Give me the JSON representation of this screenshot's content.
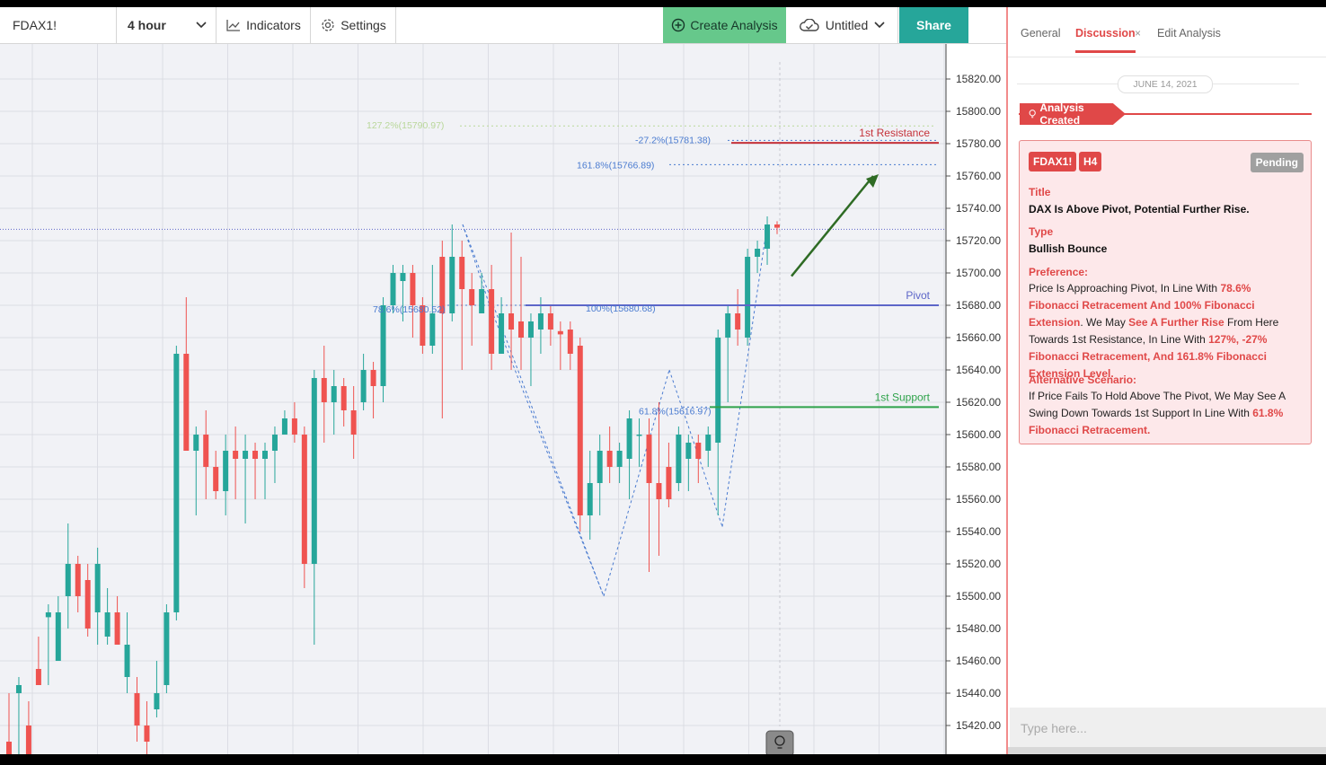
{
  "toolbar": {
    "symbol": "FDAX1!",
    "interval": "4 hour",
    "indicators_label": "Indicators",
    "settings_label": "Settings",
    "create_label": "Create Analysis",
    "untitled_label": "Untitled",
    "share_label": "Share"
  },
  "chart_data": {
    "type": "candlestick",
    "y_ticks": [
      "15820.00",
      "15800.00",
      "15780.00",
      "15760.00",
      "15740.00",
      "15720.00",
      "15700.00",
      "15680.00",
      "15660.00",
      "15640.00",
      "15620.00",
      "15600.00",
      "15580.00",
      "15560.00",
      "15540.00",
      "15520.00",
      "15500.00",
      "15480.00",
      "15460.00",
      "15440.00",
      "15420.00"
    ],
    "ylim": [
      15407,
      15834
    ],
    "candles": [
      [
        15410,
        15400,
        15440,
        15400
      ],
      [
        15440,
        15445,
        15450,
        15400
      ],
      [
        15420,
        15400,
        15435,
        15400
      ],
      [
        15455,
        15445,
        15475,
        15445
      ],
      [
        15487,
        15490,
        15495,
        15445
      ],
      [
        15460,
        15490,
        15500,
        15460
      ],
      [
        15500,
        15520,
        15545,
        15480
      ],
      [
        15520,
        15500,
        15525,
        15490
      ],
      [
        15510,
        15480,
        15520,
        15475
      ],
      [
        15490,
        15520,
        15530,
        15470
      ],
      [
        15475,
        15490,
        15505,
        15470
      ],
      [
        15490,
        15470,
        15500,
        15470
      ],
      [
        15450,
        15470,
        15490,
        15440
      ],
      [
        15440,
        15420,
        15450,
        15410
      ],
      [
        15420,
        15410,
        15435,
        15400
      ],
      [
        15430,
        15440,
        15460,
        15425
      ],
      [
        15445,
        15490,
        15495,
        15440
      ],
      [
        15490,
        15650,
        15655,
        15485
      ],
      [
        15650,
        15590,
        15685,
        15590
      ],
      [
        15590,
        15600,
        15605,
        15550
      ],
      [
        15600,
        15580,
        15615,
        15560
      ],
      [
        15580,
        15565,
        15590,
        15560
      ],
      [
        15565,
        15590,
        15600,
        15550
      ],
      [
        15590,
        15585,
        15605,
        15560
      ],
      [
        15585,
        15590,
        15600,
        15545
      ],
      [
        15590,
        15585,
        15595,
        15560
      ],
      [
        15585,
        15590,
        15595,
        15560
      ],
      [
        15590,
        15600,
        15605,
        15570
      ],
      [
        15600,
        15610,
        15615,
        15600
      ],
      [
        15610,
        15600,
        15620,
        15595
      ],
      [
        15600,
        15520,
        15605,
        15505
      ],
      [
        15520,
        15635,
        15640,
        15470
      ],
      [
        15635,
        15620,
        15655,
        15595
      ],
      [
        15620,
        15630,
        15640,
        15600
      ],
      [
        15630,
        15615,
        15635,
        15605
      ],
      [
        15615,
        15600,
        15630,
        15585
      ],
      [
        15620,
        15640,
        15650,
        15615
      ],
      [
        15640,
        15630,
        15645,
        15610
      ],
      [
        15630,
        15680,
        15685,
        15620
      ],
      [
        15680,
        15700,
        15705,
        15675
      ],
      [
        15695,
        15700,
        15705,
        15670
      ],
      [
        15700,
        15680,
        15705,
        15660
      ],
      [
        15680,
        15655,
        15685,
        15650
      ],
      [
        15655,
        15675,
        15705,
        15650
      ],
      [
        15710,
        15675,
        15720,
        15610
      ],
      [
        15675,
        15710,
        15730,
        15670
      ],
      [
        15710,
        15690,
        15720,
        15640
      ],
      [
        15690,
        15680,
        15700,
        15655
      ],
      [
        15675,
        15690,
        15700,
        15680
      ],
      [
        15690,
        15650,
        15705,
        15640
      ],
      [
        15650,
        15675,
        15685,
        15650
      ],
      [
        15675,
        15665,
        15725,
        15640
      ],
      [
        15670,
        15660,
        15710,
        15640
      ],
      [
        15660,
        15670,
        15675,
        15630
      ],
      [
        15665,
        15675,
        15685,
        15650
      ],
      [
        15675,
        15665,
        15680,
        15655
      ],
      [
        15664,
        15662,
        15670,
        15640
      ],
      [
        15665,
        15650,
        15670,
        15640
      ],
      [
        15655,
        15550,
        15660,
        15540
      ],
      [
        15550,
        15570,
        15590,
        15535
      ],
      [
        15570,
        15590,
        15600,
        15550
      ],
      [
        15590,
        15580,
        15605,
        15570
      ],
      [
        15580,
        15590,
        15595,
        15570
      ],
      [
        15585,
        15610,
        15615,
        15560
      ],
      [
        15600,
        15600,
        15610,
        15580
      ],
      [
        15600,
        15570,
        15610,
        15515
      ],
      [
        15570,
        15560,
        15620,
        15525
      ],
      [
        15580,
        15560,
        15595,
        15555
      ],
      [
        15570,
        15600,
        15605,
        15565
      ],
      [
        15585,
        15595,
        15600,
        15565
      ],
      [
        15595,
        15585,
        15600,
        15570
      ],
      [
        15590,
        15600,
        15605,
        15580
      ],
      [
        15595,
        15660,
        15665,
        15550
      ],
      [
        15660,
        15675,
        15680,
        15620
      ],
      [
        15675,
        15665,
        15690,
        15655
      ],
      [
        15660,
        15710,
        15715,
        15655
      ],
      [
        15710,
        15715,
        15720,
        15700
      ],
      [
        15715,
        15730,
        15735,
        15705
      ],
      [
        15730,
        15728,
        15732,
        15724
      ]
    ],
    "levels": [
      {
        "label": "1st Resistance",
        "price": 15780.5,
        "color": "#c5323a"
      },
      {
        "label": "Pivot",
        "price": 15680,
        "color": "#5d66c8"
      },
      {
        "label": "1st Support",
        "price": 15617,
        "color": "#2ea24a"
      }
    ],
    "fib_labels": [
      {
        "text": "127.2%(15790.97)",
        "price": 15791,
        "color": "#b9d79a"
      },
      {
        "text": "-27.2%(15781.38)",
        "price": 15782,
        "color": "#4a7bd0"
      },
      {
        "text": "161.8%(15766.89)",
        "price": 15767,
        "color": "#4a7bd0"
      },
      {
        "text": "78.6%(15680.52)",
        "price": 15680,
        "color": "#4a7bd0"
      },
      {
        "text": "100%(15680.68)",
        "price": 15680,
        "color": "#4a7bd0"
      },
      {
        "text": "61.8%(15616.97)",
        "price": 15617,
        "color": "#4a7bd0"
      }
    ],
    "current_price": 15727,
    "arrow_color": "#2e6b24"
  },
  "panel": {
    "tabs": {
      "general": "General",
      "discussion": "Discussion",
      "close": "×",
      "edit": "Edit Analysis"
    },
    "date": "JUNE 14, 2021",
    "created_label": "Analysis Created",
    "card": {
      "symbol": "FDAX1!",
      "timeframe": "H4",
      "status": "Pending",
      "title_label": "Title",
      "title": "DAX Is Above Pivot, Potential Further Rise.",
      "type_label": "Type",
      "type": "Bullish Bounce",
      "preference_label": "Preference:",
      "pref_1": "Price Is Approaching Pivot, In Line With ",
      "pref_2": "78.6% Fibonacci Retracement And 100% Fibonacci Extension",
      "pref_3": ". We May ",
      "pref_4": "See A Further Rise",
      "pref_5": " From Here Towards 1st Resistance, In Line With ",
      "pref_6": "127%, -27% Fibonacci Retracement, And 161.8% Fibonacci Extension Level.",
      "alt_label": "Alternative Scenario:",
      "alt_1": "If Price Fails To Hold Above The Pivot, We May See A Swing Down Towards 1st Support In Line With ",
      "alt_2": "61.8% Fibonacci Retracement."
    },
    "input_placeholder": "Type here..."
  }
}
